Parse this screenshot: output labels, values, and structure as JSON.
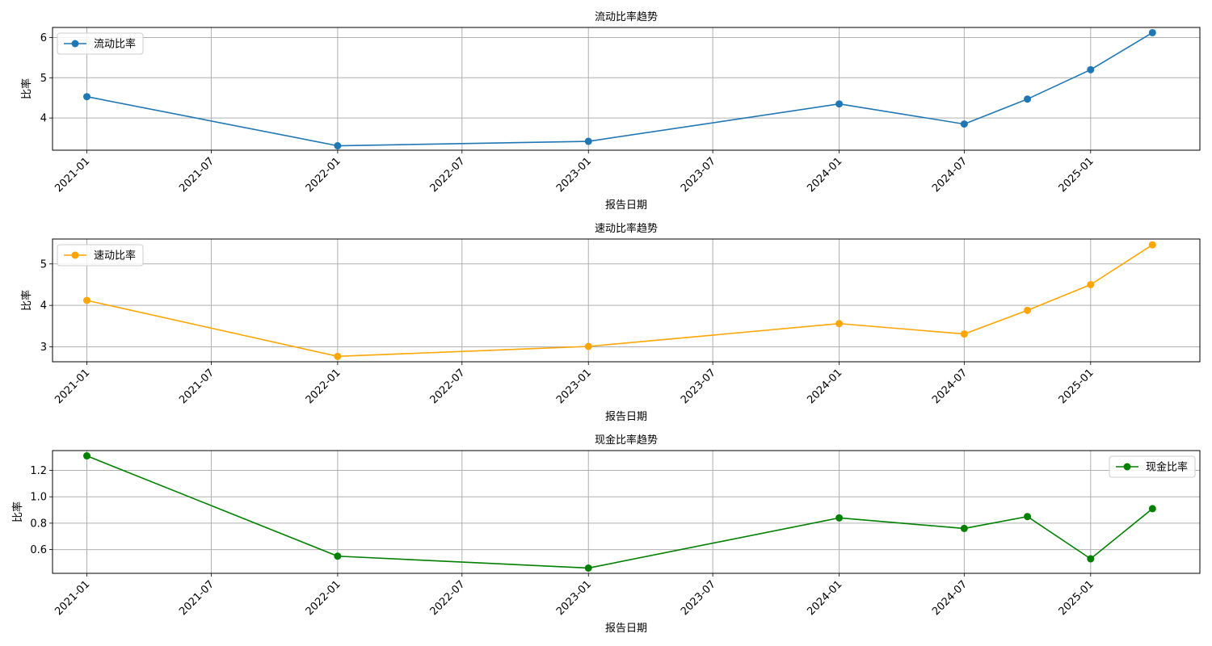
{
  "chart_data": [
    {
      "type": "line",
      "title": "流动比率趋势",
      "xlabel": "报告日期",
      "ylabel": "比率",
      "x_ticks": [
        "2021-01",
        "2021-07",
        "2022-01",
        "2022-07",
        "2023-01",
        "2023-07",
        "2024-01",
        "2024-07",
        "2025-01"
      ],
      "y_ticks": [
        4,
        5,
        6
      ],
      "ylim": [
        3.2,
        6.25
      ],
      "grid": true,
      "legend_position": "top-left",
      "series": [
        {
          "name": "流动比率",
          "color": "#1f77b4",
          "x": [
            "2021-01-01",
            "2022-01-01",
            "2023-01-01",
            "2024-01-01",
            "2024-07-01",
            "2024-10-01",
            "2025-01-01",
            "2025-04-01"
          ],
          "y": [
            4.53,
            3.31,
            3.42,
            4.35,
            3.85,
            4.47,
            5.2,
            6.12
          ]
        }
      ]
    },
    {
      "type": "line",
      "title": "速动比率趋势",
      "xlabel": "报告日期",
      "ylabel": "比率",
      "x_ticks": [
        "2021-01",
        "2021-07",
        "2022-01",
        "2022-07",
        "2023-01",
        "2023-07",
        "2024-01",
        "2024-07",
        "2025-01"
      ],
      "y_ticks": [
        3,
        4,
        5
      ],
      "ylim": [
        2.64,
        5.6
      ],
      "grid": true,
      "legend_position": "top-left",
      "series": [
        {
          "name": "速动比率",
          "color": "#ffa500",
          "x": [
            "2021-01-01",
            "2022-01-01",
            "2023-01-01",
            "2024-01-01",
            "2024-07-01",
            "2024-10-01",
            "2025-01-01",
            "2025-04-01"
          ],
          "y": [
            4.12,
            2.77,
            3.01,
            3.56,
            3.31,
            3.88,
            4.5,
            5.46
          ]
        }
      ]
    },
    {
      "type": "line",
      "title": "现金比率趋势",
      "xlabel": "报告日期",
      "ylabel": "比率",
      "x_ticks": [
        "2021-01",
        "2021-07",
        "2022-01",
        "2022-07",
        "2023-01",
        "2023-07",
        "2024-01",
        "2024-07",
        "2025-01"
      ],
      "y_ticks": [
        "0.6",
        "0.8",
        "1.0",
        "1.2"
      ],
      "ylim": [
        0.42,
        1.35
      ],
      "grid": true,
      "legend_position": "top-right",
      "series": [
        {
          "name": "现金比率",
          "color": "#008000",
          "x": [
            "2021-01-01",
            "2022-01-01",
            "2023-01-01",
            "2024-01-01",
            "2024-07-01",
            "2024-10-01",
            "2025-01-01",
            "2025-04-01"
          ],
          "y": [
            1.31,
            0.55,
            0.46,
            0.84,
            0.76,
            0.85,
            0.53,
            0.91
          ]
        }
      ]
    }
  ]
}
